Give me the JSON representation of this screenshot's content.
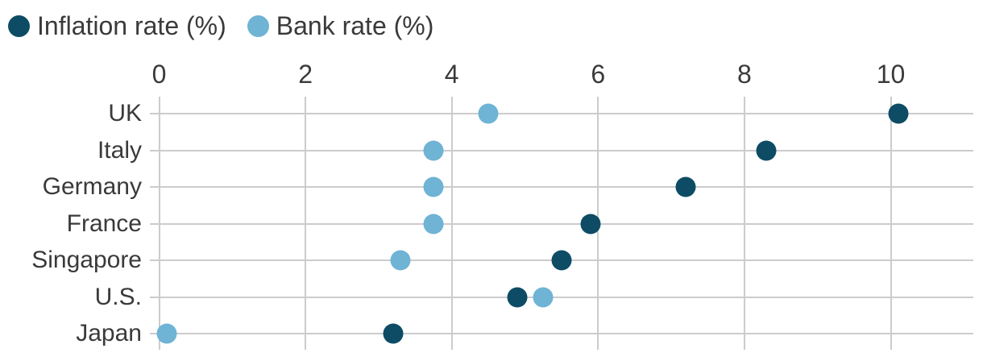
{
  "legend": {
    "items": [
      {
        "label": "Inflation rate (%)",
        "color": "#0d4c64"
      },
      {
        "label": "Bank rate (%)",
        "color": "#6fb3d5"
      }
    ]
  },
  "chart_data": {
    "type": "scatter",
    "orientation": "horizontal-dot-plot",
    "title": "",
    "categories": [
      "UK",
      "Italy",
      "Germany",
      "France",
      "Singapore",
      "U.S.",
      "Japan"
    ],
    "series": [
      {
        "name": "Inflation rate (%)",
        "color": "#0d4c64",
        "values": [
          10.1,
          8.3,
          7.2,
          5.9,
          5.5,
          4.9,
          3.2
        ]
      },
      {
        "name": "Bank rate (%)",
        "color": "#6fb3d5",
        "values": [
          4.5,
          3.75,
          3.75,
          3.75,
          3.3,
          5.25,
          0.1
        ]
      }
    ],
    "xticks": [
      "0",
      "2",
      "4",
      "6",
      "8",
      "10"
    ],
    "xtick_values": [
      0,
      2,
      4,
      6,
      8,
      10
    ],
    "xlim": [
      0,
      11.1
    ],
    "grid": true,
    "legend_position": "top-left",
    "colors": {
      "gridline": "#cccccc",
      "text": "#3a3a3a",
      "background": "#ffffff"
    }
  }
}
